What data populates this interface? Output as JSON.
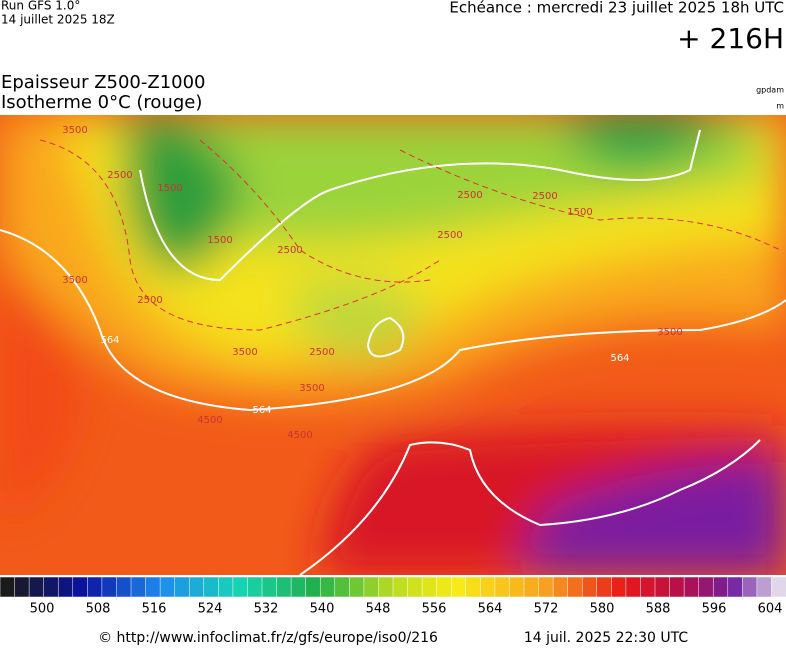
{
  "header": {
    "run": "Run GFS 1.0°",
    "run_date": "14 juillet 2025 18Z",
    "forecast": "Echéance : mercredi 23 juillet 2025 18h UTC",
    "lead": "+ 216H",
    "title": "Epaisseur Z500-Z1000",
    "subtitle": "Isotherme 0°C (rouge)",
    "unit_top": "gpdam",
    "unit_bottom": "m"
  },
  "map": {
    "contour_labels": [
      "3500",
      "2500",
      "1500",
      "2500",
      "1500",
      "2500",
      "2500",
      "2500",
      "1500",
      "3500",
      "2500",
      "3500",
      "2500",
      "3500",
      "564",
      "564",
      "4500",
      "4500",
      "3500",
      "564"
    ]
  },
  "colorbar": {
    "labels": [
      500,
      508,
      516,
      524,
      532,
      540,
      548,
      556,
      564,
      572,
      580,
      588,
      596,
      604
    ]
  },
  "footer": {
    "source": "© http://www.infoclimat.fr/z/gfs/europe/iso0/216",
    "issued": "14 juil. 2025 22:30 UTC"
  }
}
